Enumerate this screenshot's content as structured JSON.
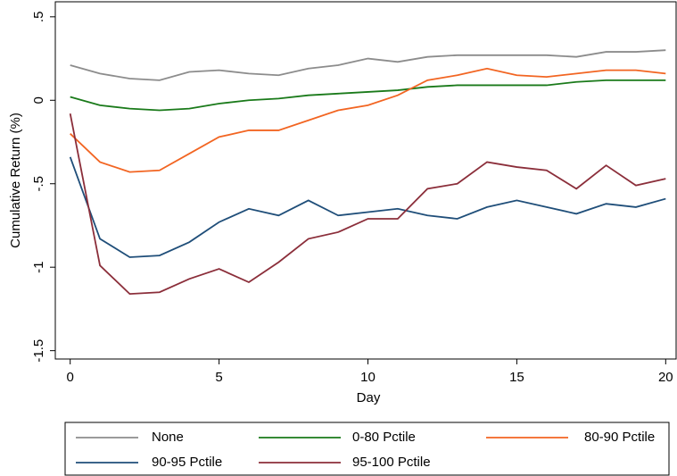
{
  "chart_data": {
    "type": "line",
    "x_label": "Day",
    "y_label": "Cumulative Return (%)",
    "x": [
      0,
      1,
      2,
      3,
      4,
      5,
      6,
      7,
      8,
      9,
      10,
      11,
      12,
      13,
      14,
      15,
      16,
      17,
      18,
      19,
      20
    ],
    "xlim": [
      -0.5,
      20.35
    ],
    "xticks": [
      0,
      5,
      10,
      15,
      20
    ],
    "ylim": [
      -1.55,
      0.59
    ],
    "yticks": [
      {
        "value": 0.5,
        "label": ".5"
      },
      0,
      {
        "value": -0.5,
        "label": "-.5"
      },
      -1,
      -1.5
    ],
    "series": [
      {
        "name": "None",
        "color": "#8c8c8c",
        "values": [
          0.21,
          0.16,
          0.13,
          0.12,
          0.17,
          0.18,
          0.16,
          0.15,
          0.19,
          0.21,
          0.25,
          0.23,
          0.26,
          0.27,
          0.27,
          0.27,
          0.27,
          0.26,
          0.29,
          0.29,
          0.3
        ]
      },
      {
        "name": "0-80 Pctile",
        "color": "#1a7a1a",
        "values": [
          0.02,
          -0.03,
          -0.05,
          -0.06,
          -0.05,
          -0.02,
          0,
          0.01,
          0.03,
          0.04,
          0.05,
          0.06,
          0.08,
          0.09,
          0.09,
          0.09,
          0.09,
          0.11,
          0.12,
          0.12,
          0.12
        ]
      },
      {
        "name": "80-90 Pctile",
        "color": "#f26522",
        "values": [
          -0.2,
          -0.37,
          -0.43,
          -0.42,
          -0.32,
          -0.22,
          -0.18,
          -0.18,
          -0.12,
          -0.06,
          -0.03,
          0.03,
          0.12,
          0.15,
          0.19,
          0.15,
          0.14,
          0.16,
          0.18,
          0.18,
          0.16
        ]
      },
      {
        "name": "90-95 Pctile",
        "color": "#1f4e79",
        "values": [
          -0.34,
          -0.83,
          -0.94,
          -0.93,
          -0.85,
          -0.73,
          -0.65,
          -0.69,
          -0.6,
          -0.69,
          -0.67,
          -0.65,
          -0.69,
          -0.71,
          -0.64,
          -0.6,
          -0.64,
          -0.68,
          -0.62,
          -0.64,
          -0.59
        ]
      },
      {
        "name": "95-100 Pctile",
        "color": "#8b2e3a",
        "values": [
          -0.08,
          -0.99,
          -1.16,
          -1.15,
          -1.07,
          -1.01,
          -1.09,
          -0.97,
          -0.83,
          -0.79,
          -0.71,
          -0.71,
          -0.53,
          -0.5,
          -0.37,
          -0.4,
          -0.42,
          -0.53,
          -0.39,
          -0.51,
          -0.47
        ]
      }
    ]
  }
}
